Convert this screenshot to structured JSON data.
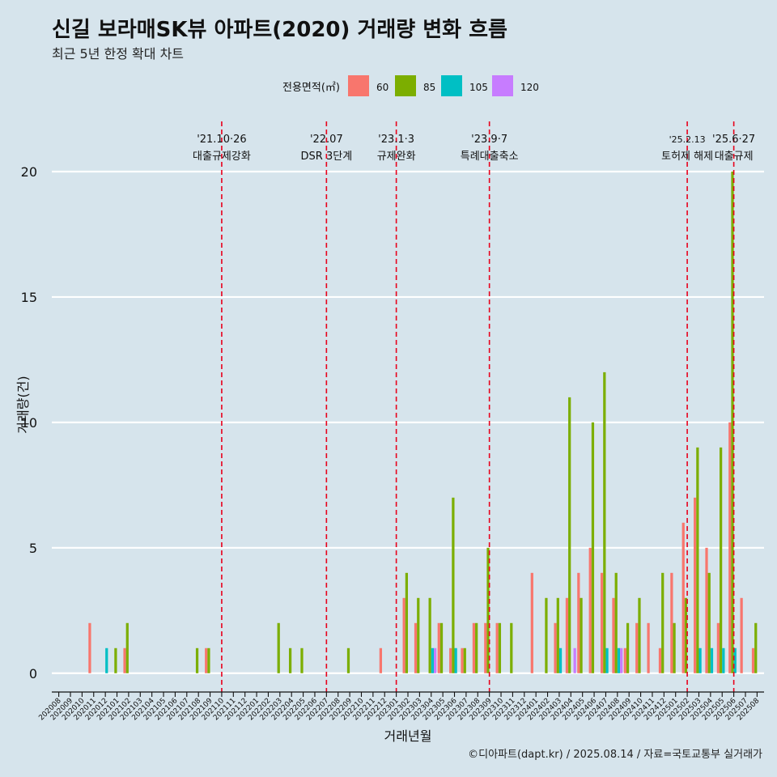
{
  "title": "신길 보라매SK뷰 아파트(2020) 거래량 변화 흐름",
  "subtitle": "최근 5년 한정 확대 차트",
  "caption": "©디아파트(dapt.kr) / 2025.08.14 / 자료=국토교통부 실거래가",
  "chart_data": {
    "type": "bar",
    "xlabel": "거래년월",
    "ylabel": "거래량(건)",
    "ylim": [
      0,
      22
    ],
    "yticks": [
      0,
      5,
      10,
      15,
      20
    ],
    "grid": "horizontal",
    "legend": {
      "title": "전용면적(㎡)",
      "position": "top",
      "entries": [
        {
          "name": "60",
          "color": "#f8766d"
        },
        {
          "name": "85",
          "color": "#7cae00"
        },
        {
          "name": "105",
          "color": "#00bfc4"
        },
        {
          "name": "120",
          "color": "#c77cff"
        }
      ]
    },
    "categories": [
      "202008",
      "202009",
      "202010",
      "202011",
      "202012",
      "202101",
      "202102",
      "202103",
      "202104",
      "202105",
      "202106",
      "202107",
      "202108",
      "202109",
      "202110",
      "202111",
      "202112",
      "202201",
      "202202",
      "202203",
      "202204",
      "202205",
      "202206",
      "202207",
      "202208",
      "202209",
      "202210",
      "202211",
      "202212",
      "202301",
      "202302",
      "202303",
      "202304",
      "202305",
      "202306",
      "202307",
      "202308",
      "202309",
      "202310",
      "202311",
      "202312",
      "202401",
      "202402",
      "202403",
      "202404",
      "202405",
      "202406",
      "202407",
      "202408",
      "202409",
      "202410",
      "202411",
      "202412",
      "202501",
      "202502",
      "202503",
      "202504",
      "202505",
      "202506",
      "202507",
      "202508"
    ],
    "series": [
      {
        "name": "60",
        "color": "#f8766d",
        "values": [
          0,
          0,
          0,
          2,
          0,
          0,
          1,
          0,
          0,
          0,
          0,
          0,
          0,
          1,
          0,
          0,
          0,
          0,
          0,
          0,
          0,
          0,
          0,
          0,
          0,
          0,
          0,
          0,
          1,
          0,
          3,
          2,
          0,
          2,
          1,
          1,
          2,
          2,
          2,
          0,
          0,
          4,
          0,
          2,
          3,
          4,
          5,
          4,
          3,
          1,
          2,
          2,
          1,
          4,
          6,
          7,
          5,
          2,
          10,
          3,
          1
        ]
      },
      {
        "name": "85",
        "color": "#7cae00",
        "values": [
          0,
          0,
          0,
          0,
          0,
          1,
          2,
          0,
          0,
          0,
          0,
          0,
          1,
          1,
          0,
          0,
          0,
          0,
          0,
          2,
          1,
          1,
          0,
          0,
          0,
          1,
          0,
          0,
          0,
          0,
          4,
          3,
          3,
          2,
          7,
          1,
          2,
          5,
          2,
          2,
          0,
          0,
          3,
          3,
          11,
          3,
          10,
          12,
          4,
          2,
          3,
          0,
          4,
          2,
          3,
          9,
          4,
          9,
          20,
          0,
          2
        ]
      },
      {
        "name": "105",
        "color": "#00bfc4",
        "values": [
          0,
          0,
          0,
          0,
          1,
          0,
          0,
          0,
          0,
          0,
          0,
          0,
          0,
          0,
          0,
          0,
          0,
          0,
          0,
          0,
          0,
          0,
          0,
          0,
          0,
          0,
          0,
          0,
          0,
          0,
          0,
          0,
          1,
          0,
          1,
          0,
          0,
          0,
          0,
          0,
          0,
          0,
          0,
          1,
          0,
          0,
          0,
          1,
          1,
          0,
          0,
          0,
          0,
          0,
          0,
          1,
          1,
          1,
          1,
          0,
          0
        ]
      },
      {
        "name": "120",
        "color": "#c77cff",
        "values": [
          0,
          0,
          0,
          0,
          0,
          0,
          0,
          0,
          0,
          0,
          0,
          0,
          0,
          0,
          0,
          0,
          0,
          0,
          0,
          0,
          0,
          0,
          0,
          0,
          0,
          0,
          0,
          0,
          0,
          0,
          0,
          0,
          1,
          0,
          0,
          0,
          0,
          0,
          0,
          0,
          0,
          0,
          0,
          0,
          1,
          0,
          0,
          0,
          1,
          0,
          0,
          0,
          0,
          0,
          0,
          0,
          0,
          0,
          0,
          0,
          0
        ]
      }
    ],
    "annotations": [
      {
        "category": "202110",
        "date": "'21.10·26",
        "label": "대출규제강화"
      },
      {
        "category": "202207",
        "date": "'22.07",
        "label": "DSR 3단계"
      },
      {
        "category": "202301",
        "date": "'23.1·3",
        "label": "규제완화"
      },
      {
        "category": "202309",
        "date": "'23.9·7",
        "label": "특례대출축소"
      },
      {
        "category": "202502",
        "date": "'25.2.13",
        "label": "토허제 해제"
      },
      {
        "category": "202506",
        "date": "'25.6·27",
        "label": "대출규제"
      }
    ]
  }
}
